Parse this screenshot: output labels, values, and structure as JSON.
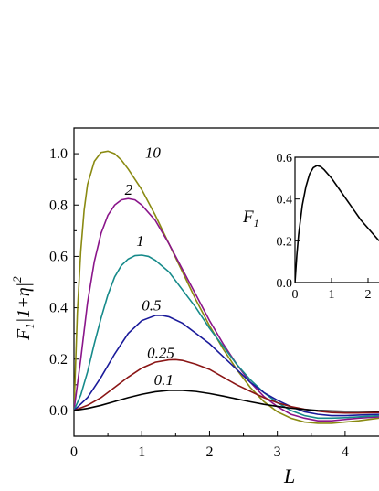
{
  "chart_data": [
    {
      "type": "line",
      "title": "",
      "xlabel": "L",
      "ylabel_main": "F",
      "ylabel_sub": "1",
      "ylabel_bars": "|1+η|",
      "ylabel_sup": "2",
      "xlim": [
        0,
        4.5
      ],
      "ylim": [
        -0.1,
        1.1
      ],
      "xticks": [
        0,
        1,
        2,
        3,
        4
      ],
      "xtick_labels": [
        "0",
        "1",
        "2",
        "3",
        "4"
      ],
      "yticks": [
        0.0,
        0.2,
        0.4,
        0.6,
        0.8,
        1.0
      ],
      "ytick_labels": [
        "0.0",
        "0.2",
        "0.4",
        "0.6",
        "0.8",
        "1.0"
      ],
      "grid": false,
      "series": [
        {
          "name": "10",
          "color": "#8a8a12",
          "x": [
            0,
            0.05,
            0.1,
            0.15,
            0.2,
            0.3,
            0.4,
            0.5,
            0.6,
            0.7,
            0.8,
            1.0,
            1.2,
            1.4,
            1.6,
            1.8,
            2.0,
            2.2,
            2.4,
            2.6,
            2.8,
            3.0,
            3.2,
            3.4,
            3.6,
            3.8,
            4.0,
            4.2,
            4.5
          ],
          "y": [
            0,
            0.38,
            0.62,
            0.78,
            0.88,
            0.97,
            1.005,
            1.01,
            1.0,
            0.975,
            0.94,
            0.86,
            0.76,
            0.65,
            0.54,
            0.43,
            0.33,
            0.24,
            0.16,
            0.09,
            0.035,
            -0.005,
            -0.03,
            -0.045,
            -0.05,
            -0.05,
            -0.045,
            -0.04,
            -0.03
          ]
        },
        {
          "name": "2",
          "color": "#8a158a",
          "x": [
            0,
            0.1,
            0.2,
            0.3,
            0.4,
            0.5,
            0.6,
            0.7,
            0.8,
            0.9,
            1.0,
            1.2,
            1.4,
            1.6,
            1.8,
            2.0,
            2.2,
            2.4,
            2.6,
            2.8,
            3.0,
            3.2,
            3.4,
            3.6,
            3.8,
            4.0,
            4.2,
            4.5
          ],
          "y": [
            0,
            0.2,
            0.42,
            0.58,
            0.69,
            0.76,
            0.8,
            0.82,
            0.825,
            0.82,
            0.8,
            0.74,
            0.65,
            0.55,
            0.45,
            0.35,
            0.26,
            0.18,
            0.11,
            0.055,
            0.015,
            -0.015,
            -0.03,
            -0.04,
            -0.04,
            -0.035,
            -0.03,
            -0.025
          ]
        },
        {
          "name": "1",
          "color": "#168a8a",
          "x": [
            0,
            0.1,
            0.2,
            0.3,
            0.4,
            0.5,
            0.6,
            0.7,
            0.8,
            0.9,
            1.0,
            1.1,
            1.2,
            1.4,
            1.6,
            1.8,
            2.0,
            2.2,
            2.4,
            2.6,
            2.8,
            3.0,
            3.2,
            3.4,
            3.6,
            3.8,
            4.0,
            4.2,
            4.5
          ],
          "y": [
            0,
            0.06,
            0.15,
            0.26,
            0.36,
            0.45,
            0.52,
            0.565,
            0.59,
            0.603,
            0.605,
            0.6,
            0.585,
            0.54,
            0.47,
            0.4,
            0.32,
            0.25,
            0.18,
            0.12,
            0.07,
            0.03,
            0.0,
            -0.02,
            -0.03,
            -0.03,
            -0.028,
            -0.025,
            -0.02
          ]
        },
        {
          "name": "0.5",
          "color": "#1a1a9a",
          "x": [
            0,
            0.2,
            0.4,
            0.6,
            0.8,
            1.0,
            1.2,
            1.3,
            1.4,
            1.6,
            1.8,
            2.0,
            2.2,
            2.4,
            2.6,
            2.8,
            3.0,
            3.2,
            3.4,
            3.6,
            3.8,
            4.0,
            4.2,
            4.5
          ],
          "y": [
            0,
            0.05,
            0.13,
            0.22,
            0.3,
            0.35,
            0.37,
            0.37,
            0.365,
            0.34,
            0.3,
            0.26,
            0.21,
            0.16,
            0.11,
            0.07,
            0.04,
            0.015,
            -0.005,
            -0.015,
            -0.02,
            -0.02,
            -0.018,
            -0.015
          ]
        },
        {
          "name": "0.25",
          "color": "#8a1515",
          "x": [
            0,
            0.2,
            0.4,
            0.6,
            0.8,
            1.0,
            1.2,
            1.4,
            1.5,
            1.6,
            1.8,
            2.0,
            2.2,
            2.4,
            2.6,
            2.8,
            3.0,
            3.2,
            3.4,
            3.6,
            3.8,
            4.0,
            4.2,
            4.5
          ],
          "y": [
            0,
            0.02,
            0.05,
            0.09,
            0.13,
            0.165,
            0.188,
            0.197,
            0.198,
            0.195,
            0.18,
            0.16,
            0.13,
            0.1,
            0.075,
            0.05,
            0.03,
            0.015,
            0.005,
            -0.003,
            -0.008,
            -0.01,
            -0.01,
            -0.008
          ]
        },
        {
          "name": "0.1",
          "color": "#000000",
          "x": [
            0,
            0.2,
            0.4,
            0.6,
            0.8,
            1.0,
            1.2,
            1.4,
            1.6,
            1.8,
            2.0,
            2.2,
            2.4,
            2.6,
            2.8,
            3.0,
            3.2,
            3.4,
            3.6,
            3.8,
            4.0,
            4.2,
            4.5
          ],
          "y": [
            0,
            0.008,
            0.02,
            0.035,
            0.05,
            0.063,
            0.073,
            0.078,
            0.078,
            0.074,
            0.066,
            0.056,
            0.045,
            0.034,
            0.024,
            0.016,
            0.009,
            0.004,
            0.0,
            -0.002,
            -0.003,
            -0.003,
            -0.003
          ]
        }
      ],
      "annotations": [
        {
          "text": "10",
          "x": 1.05,
          "y": 0.985
        },
        {
          "text": "2",
          "x": 0.75,
          "y": 0.84
        },
        {
          "text": "1",
          "x": 0.92,
          "y": 0.64
        },
        {
          "text": "0.5",
          "x": 1.0,
          "y": 0.39
        },
        {
          "text": "0.25",
          "x": 1.08,
          "y": 0.205
        },
        {
          "text": "0.1",
          "x": 1.18,
          "y": 0.1
        }
      ]
    },
    {
      "type": "line",
      "title": "",
      "ylabel_main": "F",
      "ylabel_sub": "1",
      "xlim": [
        0,
        2.3
      ],
      "ylim": [
        0,
        0.6
      ],
      "xticks": [
        0,
        1,
        2
      ],
      "xtick_labels": [
        "0",
        "1",
        "2"
      ],
      "yticks": [
        0.0,
        0.2,
        0.4,
        0.6
      ],
      "ytick_labels": [
        "0.0",
        "0.2",
        "0.4",
        "0.6"
      ],
      "series": [
        {
          "color": "#000000",
          "x": [
            0,
            0.05,
            0.1,
            0.2,
            0.3,
            0.4,
            0.5,
            0.6,
            0.7,
            0.8,
            1.0,
            1.2,
            1.4,
            1.6,
            1.8,
            2.0,
            2.2,
            2.3
          ],
          "y": [
            0,
            0.13,
            0.23,
            0.37,
            0.46,
            0.52,
            0.55,
            0.56,
            0.555,
            0.54,
            0.5,
            0.45,
            0.4,
            0.35,
            0.3,
            0.26,
            0.22,
            0.2
          ]
        }
      ]
    }
  ]
}
